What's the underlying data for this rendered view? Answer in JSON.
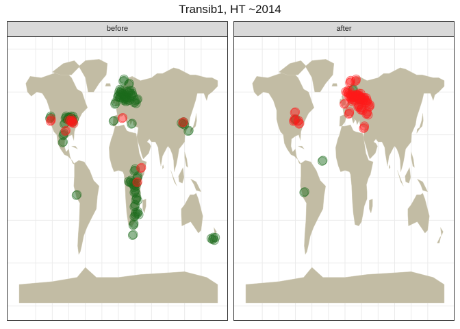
{
  "title": "Transib1, HT ~2014",
  "colors": {
    "land": "#c2bca4",
    "grid": "#ebebeb",
    "panel_border": "#333333",
    "strip_bg": "#d9d9d9",
    "green": "#1c6b1c",
    "red": "#ff1a1a"
  },
  "panels": [
    {
      "label": "before",
      "points_green": [
        {
          "lon": -123,
          "lat": 42,
          "n": 3
        },
        {
          "lon": -95,
          "lat": 42,
          "n": 4
        },
        {
          "lon": -90,
          "lat": 41,
          "n": 3
        },
        {
          "lon": -86,
          "lat": 42,
          "n": 6
        },
        {
          "lon": -84,
          "lat": 40,
          "n": 6
        },
        {
          "lon": -97,
          "lat": 38,
          "n": 2
        },
        {
          "lon": -99,
          "lat": 30,
          "n": 3
        },
        {
          "lon": -100,
          "lat": 25,
          "n": 2
        },
        {
          "lon": -75,
          "lat": -12,
          "n": 2
        },
        {
          "lon": -5,
          "lat": 52,
          "n": 3
        },
        {
          "lon": 0,
          "lat": 57,
          "n": 4
        },
        {
          "lon": 5,
          "lat": 60,
          "n": 8
        },
        {
          "lon": 10,
          "lat": 57,
          "n": 10
        },
        {
          "lon": 15,
          "lat": 55,
          "n": 10
        },
        {
          "lon": 20,
          "lat": 60,
          "n": 6
        },
        {
          "lon": 25,
          "lat": 58,
          "n": 4
        },
        {
          "lon": 30,
          "lat": 53,
          "n": 4
        },
        {
          "lon": 10,
          "lat": 68,
          "n": 3
        },
        {
          "lon": 20,
          "lat": 66,
          "n": 2
        },
        {
          "lon": 35,
          "lat": 55,
          "n": 2
        },
        {
          "lon": 25,
          "lat": 38,
          "n": 2
        },
        {
          "lon": -8,
          "lat": 40,
          "n": 2
        },
        {
          "lon": 30,
          "lat": 5,
          "n": 3
        },
        {
          "lon": 35,
          "lat": 0,
          "n": 3
        },
        {
          "lon": 30,
          "lat": -5,
          "n": 8
        },
        {
          "lon": 22,
          "lat": -3,
          "n": 5
        },
        {
          "lon": 30,
          "lat": -10,
          "n": 4
        },
        {
          "lon": 33,
          "lat": -15,
          "n": 4
        },
        {
          "lon": 30,
          "lat": -20,
          "n": 3
        },
        {
          "lon": 35,
          "lat": -25,
          "n": 5
        },
        {
          "lon": 30,
          "lat": -27,
          "n": 3
        },
        {
          "lon": 28,
          "lat": -33,
          "n": 3
        },
        {
          "lon": 27,
          "lat": -40,
          "n": 2
        },
        {
          "lon": 118,
          "lat": 38,
          "n": 5
        },
        {
          "lon": 128,
          "lat": 33,
          "n": 2
        },
        {
          "lon": 172,
          "lat": -43,
          "n": 6
        }
      ],
      "points_red": [
        {
          "lon": -122,
          "lat": 40,
          "n": 3
        },
        {
          "lon": -86,
          "lat": 40,
          "n": 5
        },
        {
          "lon": -83,
          "lat": 39,
          "n": 4
        },
        {
          "lon": -95,
          "lat": 33,
          "n": 2
        },
        {
          "lon": 8,
          "lat": 42,
          "n": 2
        },
        {
          "lon": 42,
          "lat": 7,
          "n": 2
        },
        {
          "lon": 35,
          "lat": -3,
          "n": 2
        },
        {
          "lon": 118,
          "lat": 39,
          "n": 2
        }
      ]
    },
    {
      "label": "after",
      "points_green": [
        {
          "lon": -89,
          "lat": 41,
          "n": 2
        },
        {
          "lon": -73,
          "lat": -10,
          "n": 2
        },
        {
          "lon": -40,
          "lat": 12,
          "n": 2
        },
        {
          "lon": 20,
          "lat": 57,
          "n": 3
        },
        {
          "lon": 15,
          "lat": 62,
          "n": 2
        },
        {
          "lon": 28,
          "lat": 55,
          "n": 2
        }
      ],
      "points_red": [
        {
          "lon": -90,
          "lat": 46,
          "n": 2
        },
        {
          "lon": -92,
          "lat": 40,
          "n": 3
        },
        {
          "lon": -84,
          "lat": 40,
          "n": 2
        },
        {
          "lon": -82,
          "lat": 38,
          "n": 2
        },
        {
          "lon": 10,
          "lat": 67,
          "n": 3
        },
        {
          "lon": 20,
          "lat": 68,
          "n": 3
        },
        {
          "lon": 5,
          "lat": 60,
          "n": 6
        },
        {
          "lon": 10,
          "lat": 57,
          "n": 6
        },
        {
          "lon": 15,
          "lat": 55,
          "n": 8
        },
        {
          "lon": 20,
          "lat": 57,
          "n": 6
        },
        {
          "lon": 25,
          "lat": 58,
          "n": 6
        },
        {
          "lon": 30,
          "lat": 55,
          "n": 8
        },
        {
          "lon": 35,
          "lat": 55,
          "n": 6
        },
        {
          "lon": 40,
          "lat": 53,
          "n": 4
        },
        {
          "lon": 25,
          "lat": 50,
          "n": 4
        },
        {
          "lon": 30,
          "lat": 48,
          "n": 4
        },
        {
          "lon": 40,
          "lat": 45,
          "n": 4
        },
        {
          "lon": 45,
          "lat": 50,
          "n": 3
        },
        {
          "lon": 8,
          "lat": 45,
          "n": 3
        },
        {
          "lon": 35,
          "lat": 35,
          "n": 3
        },
        {
          "lon": 0,
          "lat": 52,
          "n": 2
        }
      ]
    }
  ]
}
